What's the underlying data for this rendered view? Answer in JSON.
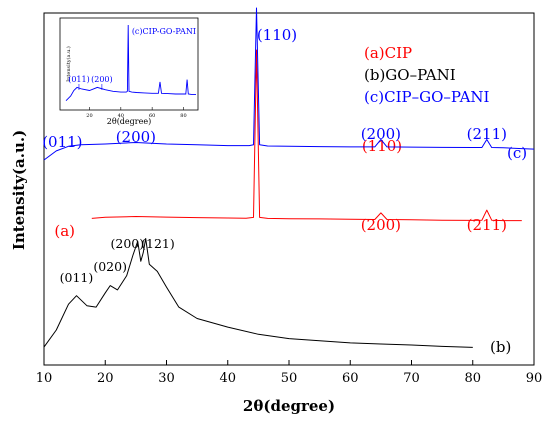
{
  "chart_data": {
    "type": "line",
    "title": "",
    "xlabel": "2θ(degree)",
    "ylabel": "Intensity(a.u.)",
    "xlim": [
      10,
      90
    ],
    "xticks": [
      "10",
      "20",
      "30",
      "40",
      "50",
      "60",
      "70",
      "80",
      "90"
    ],
    "grid": false,
    "legend_placement": "top-right",
    "legend": [
      {
        "text": "(a)CIP",
        "color": "#ff0000"
      },
      {
        "text": "(b)GO–PANI",
        "color": "#000000"
      },
      {
        "text": "(c)CIP–GO–PANI",
        "color": "#0000ff"
      }
    ],
    "series": [
      {
        "name": "(a)CIP",
        "color": "#ff0000",
        "curve_label": "(a)",
        "x": [
          17.8,
          20,
          25,
          30,
          35,
          40,
          43,
          44.2,
          44.7,
          45.2,
          46.5,
          50,
          55,
          60,
          64,
          65,
          66,
          70,
          75,
          80,
          81.5,
          82.3,
          83.1,
          85,
          88
        ],
        "y": [
          8.0,
          8.6,
          9.0,
          8.7,
          8.4,
          8.2,
          8.1,
          8.5,
          100,
          8.5,
          8.0,
          7.8,
          7.7,
          7.5,
          7.4,
          11.0,
          7.4,
          7.2,
          7.0,
          6.9,
          7.0,
          12.5,
          7.0,
          6.8,
          6.8
        ],
        "peak_labels": [
          {
            "text": "(110)",
            "x": 44.7
          },
          {
            "text": "(200)",
            "x": 65.0
          },
          {
            "text": "(211)",
            "x": 82.3
          }
        ]
      },
      {
        "name": "(b)GO–PANI",
        "color": "#000000",
        "curve_label": "(b)",
        "x": [
          10,
          12,
          14,
          15.3,
          17,
          18.5,
          20,
          20.8,
          22,
          23.5,
          24.5,
          25.3,
          25.8,
          26.2,
          26.6,
          27.2,
          28.5,
          30,
          32,
          35,
          40,
          45,
          50,
          55,
          60,
          65,
          70,
          75,
          80
        ],
        "y": [
          2,
          14,
          32,
          38,
          31,
          30,
          40,
          45,
          42,
          52,
          66,
          76,
          62,
          68,
          78,
          60,
          55,
          44,
          30,
          22,
          16,
          11,
          8,
          6.5,
          5,
          4.2,
          3.5,
          2.5,
          1.8
        ],
        "peak_labels": [
          {
            "text": "(011)",
            "x": 15.3
          },
          {
            "text": "(020)",
            "x": 20.8
          },
          {
            "text": "(200)",
            "x": 25.3
          },
          {
            "text": "(121)",
            "x": 26.6
          }
        ]
      },
      {
        "name": "(c)CIP–GO–PANI",
        "color": "#0000ff",
        "curve_label": "(c)",
        "x": [
          10,
          12,
          14,
          16,
          20,
          25,
          30,
          35,
          40,
          43.5,
          44.2,
          44.7,
          45.2,
          46.5,
          50,
          55,
          60,
          64,
          65,
          66,
          70,
          75,
          80,
          81.5,
          82.3,
          83.1,
          85,
          88,
          90
        ],
        "y": [
          0,
          6,
          9,
          10,
          10.5,
          11.5,
          10.5,
          10,
          9.5,
          9.5,
          10,
          100,
          10,
          9.2,
          9,
          8.8,
          8.6,
          8.6,
          13.5,
          8.6,
          8.5,
          8.3,
          8.2,
          8.2,
          13.5,
          8.2,
          8,
          7.5,
          7.2
        ],
        "peak_labels": [
          {
            "text": "(011)",
            "x": 12.5
          },
          {
            "text": "(200)",
            "x": 25.0
          },
          {
            "text": "(110)",
            "x": 44.7
          },
          {
            "text": "(200)",
            "x": 65.0
          },
          {
            "text": "(211)",
            "x": 82.3
          }
        ]
      }
    ],
    "inset": {
      "label": "(c)CIP-GO-PANI",
      "xlabel": "2θ(degree)",
      "ylabel": "Intensity(a.u.)",
      "xticks": [
        "20",
        "40",
        "60",
        "80"
      ],
      "color": "#0000ff",
      "peak_labels": [
        {
          "text": "(011)",
          "x": 12
        },
        {
          "text": "(200)",
          "x": 26
        }
      ],
      "x": [
        5,
        8,
        10,
        12,
        15,
        20,
        25,
        30,
        35,
        40,
        43.5,
        44.2,
        44.7,
        45.2,
        47,
        50,
        55,
        60,
        64,
        65,
        66,
        70,
        75,
        81.5,
        82.3,
        83.1,
        85,
        88
      ],
      "y": [
        3,
        9,
        16,
        20,
        18,
        16,
        20,
        17,
        15,
        14,
        14,
        15,
        100,
        15,
        14,
        13.5,
        13,
        12.5,
        12.5,
        27,
        12.5,
        12,
        11.5,
        11.5,
        30,
        11.5,
        11,
        11
      ]
    }
  }
}
